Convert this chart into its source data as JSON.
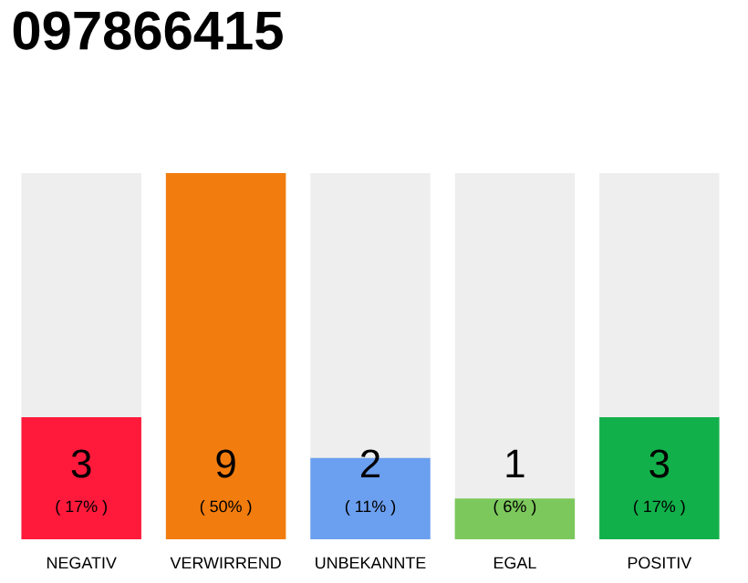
{
  "chart_data": {
    "type": "bar",
    "title": "097866415",
    "categories": [
      "NEGATIV",
      "VERWIRREND",
      "UNBEKANNTE",
      "EGAL",
      "POSITIV"
    ],
    "values": [
      3,
      9,
      2,
      1,
      3
    ],
    "colors": [
      "#ff1a3c",
      "#f27c0e",
      "#6b9fef",
      "#7cc85c",
      "#12b04a"
    ],
    "data_labels": true,
    "annotations": [
      "( 17% )",
      "( 50% )",
      "( 11% )",
      "( 6% )",
      "( 17% )"
    ]
  }
}
